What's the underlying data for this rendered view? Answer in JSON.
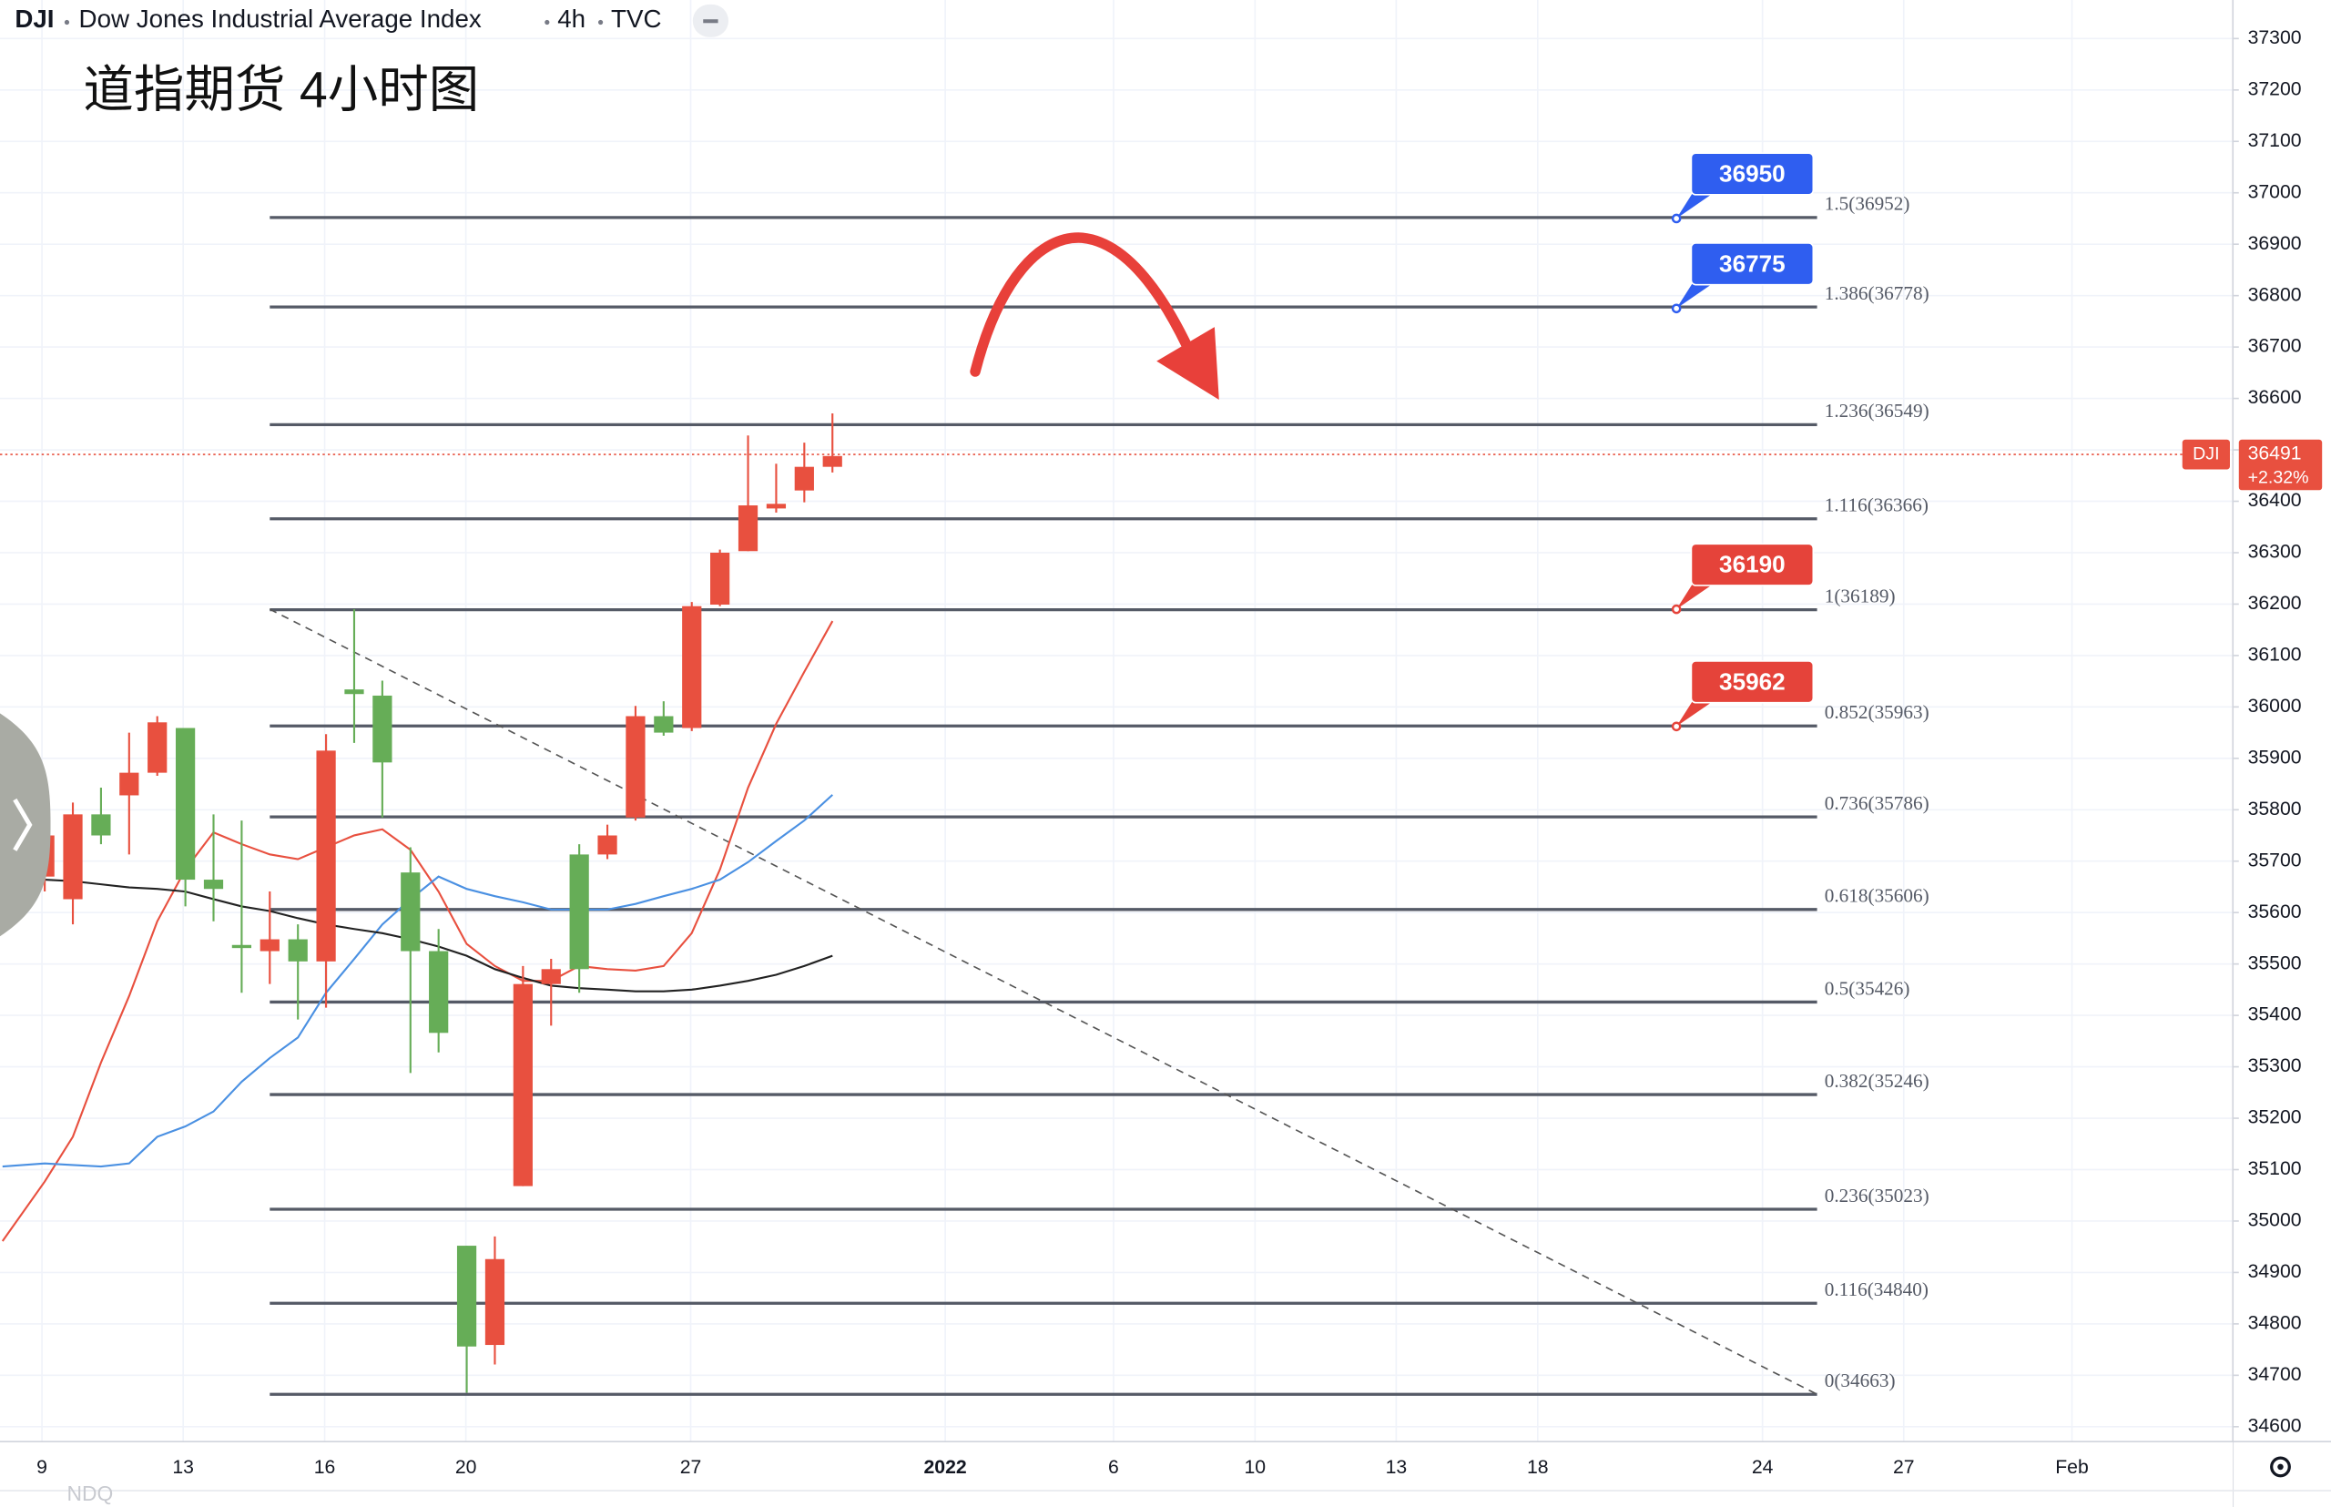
{
  "chart_data": {
    "type": "candlestick",
    "symbol": "DJI",
    "title": "Dow Jones Industrial Average Index",
    "interval": "4h",
    "exchange": "TVC",
    "annotation": "道指期货 4小时图",
    "footer": "NDQ",
    "x": [
      0,
      1,
      2,
      3,
      4,
      5,
      6,
      7,
      8,
      9,
      10,
      11,
      12,
      13,
      14,
      15,
      16,
      17,
      18,
      19,
      20,
      21,
      22,
      23,
      24,
      25,
      26,
      27,
      28
    ],
    "open": [
      35750,
      35791,
      35750,
      35872,
      35970,
      35664,
      35646,
      35531,
      35548,
      35505,
      35915,
      36025,
      35892,
      35525,
      35366,
      34756,
      34926,
      35461,
      35490,
      35490,
      35750,
      35982,
      35950,
      36196,
      36300,
      36392,
      36395,
      36467,
      36488
    ],
    "high": [
      35771,
      35814,
      35843,
      35950,
      35982,
      35959,
      35791,
      35779,
      35641,
      35577,
      35947,
      36190,
      36051,
      35727,
      35568,
      34952,
      34970,
      35496,
      35510,
      35733,
      35771,
      36002,
      36011,
      36204,
      36306,
      36528,
      36473,
      36514,
      36571
    ],
    "low": [
      35641,
      35577,
      35733,
      35713,
      35866,
      35612,
      35583,
      35444,
      35461,
      35392,
      35415,
      35930,
      35785,
      35288,
      35328,
      34666,
      34721,
      35068,
      35380,
      35444,
      35704,
      35779,
      35944,
      35953,
      36196,
      36303,
      36378,
      36398,
      36456
    ],
    "close": [
      35670,
      35626,
      35791,
      35828,
      35872,
      35959,
      35664,
      35537,
      35525,
      35548,
      35505,
      36034,
      36022,
      35678,
      35525,
      34952,
      34759,
      35068,
      35461,
      35713,
      35713,
      35785,
      35982,
      35959,
      36199,
      36303,
      36386,
      36421,
      36467
    ],
    "up_color": "#66ad57",
    "down_color": "#e8503f",
    "xlim": [
      -1.59,
      77.78
    ],
    "xticks": [
      {
        "value": -0.1,
        "label": "9"
      },
      {
        "value": 4.92,
        "label": "13"
      },
      {
        "value": 9.95,
        "label": "16"
      },
      {
        "value": 14.97,
        "label": "20"
      },
      {
        "value": 22.96,
        "label": "27"
      },
      {
        "value": 32.01,
        "label": "2022"
      },
      {
        "value": 37.99,
        "label": "6"
      },
      {
        "value": 43.02,
        "label": "10"
      },
      {
        "value": 48.04,
        "label": "13"
      },
      {
        "value": 53.07,
        "label": "18"
      },
      {
        "value": 61.06,
        "label": "24"
      },
      {
        "value": 66.08,
        "label": "27"
      },
      {
        "value": 72.06,
        "label": "Feb"
      }
    ],
    "ylim": [
      34571,
      37375
    ],
    "yticks": [
      34600,
      34700,
      34800,
      34900,
      35000,
      35100,
      35200,
      35300,
      35400,
      35500,
      35600,
      35700,
      35800,
      35900,
      36000,
      36100,
      36200,
      36300,
      36400,
      36500,
      36600,
      36700,
      36800,
      36900,
      37000,
      37100,
      37200,
      37300
    ],
    "grid": true,
    "last_price": {
      "value": 36491,
      "label": "DJI",
      "change_label": "+2.32%",
      "color": "#e8503f"
    },
    "moving_averages": [
      {
        "color": "#e8503f",
        "x": [
          -1.5,
          0,
          1,
          2,
          3,
          4,
          5,
          6,
          7,
          8,
          9,
          10,
          11,
          12,
          13,
          14,
          15,
          16,
          17,
          18,
          19,
          20,
          21,
          22,
          23,
          24,
          25,
          26,
          27,
          28
        ],
        "values": [
          34961,
          35077,
          35164,
          35308,
          35438,
          35583,
          35684,
          35756,
          35733,
          35713,
          35704,
          35727,
          35750,
          35762,
          35722,
          35641,
          35539,
          35496,
          35467,
          35467,
          35496,
          35490,
          35487,
          35496,
          35560,
          35684,
          35843,
          35967,
          36068,
          36167
        ]
      },
      {
        "color": "#4a90e2",
        "x": [
          -1.5,
          0,
          1,
          2,
          3,
          4,
          5,
          6,
          7,
          8,
          9,
          10,
          11,
          12,
          13,
          14,
          15,
          16,
          17,
          18,
          19,
          20,
          21,
          22,
          23,
          24,
          25,
          26,
          27,
          28
        ],
        "values": [
          35106,
          35112,
          35109,
          35106,
          35112,
          35164,
          35184,
          35213,
          35271,
          35317,
          35357,
          35444,
          35510,
          35577,
          35626,
          35670,
          35646,
          35632,
          35620,
          35606,
          35606,
          35606,
          35617,
          35632,
          35646,
          35664,
          35698,
          35739,
          35779,
          35829
        ]
      },
      {
        "color": "#222222",
        "x": [
          -1.5,
          0,
          1,
          2,
          3,
          4,
          5,
          6,
          7,
          8,
          9,
          10,
          11,
          12,
          13,
          14,
          15,
          16,
          17,
          18,
          19,
          20,
          21,
          22,
          23,
          24,
          25,
          26,
          27,
          28
        ],
        "values": [
          35670,
          35664,
          35661,
          35655,
          35649,
          35646,
          35641,
          35626,
          35612,
          35603,
          35589,
          35577,
          35568,
          35560,
          35548,
          35534,
          35516,
          35490,
          35473,
          35458,
          35453,
          35450,
          35447,
          35447,
          35450,
          35458,
          35467,
          35479,
          35496,
          35516
        ]
      }
    ],
    "fib": {
      "x": [
        8,
        63
      ],
      "color": "#555a66",
      "levels": [
        {
          "value": 36952,
          "label": "1.5(36952)"
        },
        {
          "value": 36778,
          "label": "1.386(36778)"
        },
        {
          "value": 36549,
          "label": "1.236(36549)"
        },
        {
          "value": 36366,
          "label": "1.116(36366)"
        },
        {
          "value": 36189,
          "label": "1(36189)"
        },
        {
          "value": 35963,
          "label": "0.852(35963)"
        },
        {
          "value": 35786,
          "label": "0.736(35786)"
        },
        {
          "value": 35606,
          "label": "0.618(35606)"
        },
        {
          "value": 35426,
          "label": "0.5(35426)"
        },
        {
          "value": 35246,
          "label": "0.382(35246)"
        },
        {
          "value": 35023,
          "label": "0.236(35023)"
        },
        {
          "value": 34840,
          "label": "0.116(34840)"
        },
        {
          "value": 34663,
          "label": "0(34663)"
        }
      ]
    },
    "trendline": {
      "x": [
        8,
        63
      ],
      "y": [
        36190,
        34663
      ]
    },
    "callouts": [
      {
        "value": 36950,
        "x": 58,
        "color": "#2f5ef0"
      },
      {
        "value": 36775,
        "x": 58,
        "color": "#2f5ef0"
      },
      {
        "value": 36190,
        "x": 58,
        "color": "#e5433a"
      },
      {
        "value": 35962,
        "x": 58,
        "color": "#e5433a"
      }
    ]
  }
}
